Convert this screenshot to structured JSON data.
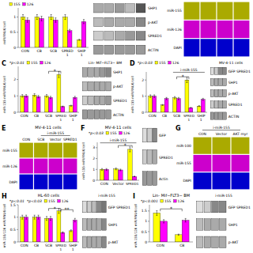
{
  "chart_data": [
    {
      "type": "bar",
      "categories": [
        "CON",
        "CB",
        "SCB",
        "SPRED\n1",
        "SHIP\n1"
      ],
      "y_label": "miR/RNU6/cell",
      "ylim": [
        0,
        1.3
      ],
      "yticks": [
        0,
        0.5,
        1
      ],
      "series": [
        {
          "name": "155",
          "color": "#ffff00",
          "values": [
            1.0,
            1.0,
            1.0,
            1.0,
            0.25
          ],
          "errors": [
            0.08,
            0.08,
            0.08,
            0.08,
            0.02
          ]
        },
        {
          "name": "126",
          "color": "#ff00ff",
          "values": [
            0.9,
            0.95,
            0.9,
            0.55,
            0.85
          ],
          "errors": [
            0.072,
            0.076,
            0.072,
            0.044,
            0.068
          ]
        }
      ]
    },
    {
      "type": "blot",
      "categories": [
        "SHP1",
        "p-AKT",
        "SPRED1",
        "ACTIN"
      ],
      "x": [
        null,
        null,
        null,
        null,
        null
      ],
      "colors": [
        [
          "#aaaaaa",
          "#aaaaaa",
          "#999999",
          "#bbbbbb",
          "#555555"
        ],
        [
          "#bbbbbb",
          "#aaaaaa",
          "#aaaaaa",
          "#aaaaaa",
          "#888888"
        ],
        [
          "#cccccc",
          "#bbbbbb",
          "#aaaaaa",
          "#999999",
          "#888888"
        ],
        [
          "#999999",
          "#999999",
          "#999999",
          "#999999",
          "#999999"
        ]
      ]
    },
    {
      "type": "image_grid",
      "categories": [
        "miR-155",
        "miR-126",
        "DAPI"
      ],
      "x": [
        null,
        null,
        null,
        null
      ],
      "colors": [
        "#aaaa00",
        "#cc00cc",
        "#0000cc"
      ]
    },
    {
      "type": "bar",
      "categories": [
        "CON",
        "CB",
        "SCB",
        "SPRED\n1",
        "SHIP\n1"
      ],
      "y_label": "miR-155 miR/RNU6/cell",
      "ylim": [
        0,
        2.8
      ],
      "yticks": [
        0,
        1,
        2
      ],
      "series": [
        {
          "name": "155",
          "color": "#ffff00",
          "values": [
            1.0,
            1.05,
            1.0,
            2.3,
            0.4
          ],
          "errors": [
            0.08,
            0.084,
            0.08,
            0.184,
            0.032
          ]
        },
        {
          "name": "126",
          "color": "#ff00ff",
          "values": [
            1.0,
            0.95,
            0.9,
            0.35,
            0.9
          ],
          "errors": [
            0.08,
            0.076,
            0.072,
            0.028,
            0.072
          ]
        }
      ],
      "annotations": [
        {
          "text": "C",
          "kind": "panel"
        },
        {
          "text": "*p<0.01",
          "kind": "note"
        },
        {
          "text": "*",
          "kind": "bracket",
          "between": [
            2,
            3
          ],
          "y": 2.5
        }
      ]
    },
    {
      "type": "blot",
      "title": "Lin- Mif−FLT3− BM",
      "categories": [
        "SHP1",
        "p-AKT",
        "SPRED1",
        "ACTIN"
      ],
      "x": [
        null,
        null,
        null,
        null,
        null
      ],
      "colors": [
        [
          "#aaaaaa",
          "#aaaaaa",
          "#aaaaaa",
          "#999999",
          "#888888"
        ],
        [
          "#bbbbbb",
          "#aaaaaa",
          "#aaaaaa",
          "#aaaaaa",
          "#aaaaaa"
        ],
        [
          "#cccccc",
          "#bbbbbb",
          "#aaaaaa",
          "#aaaaaa",
          "#999999"
        ],
        [
          "#999999",
          "#999999",
          "#999999",
          "#999999",
          "#999999"
        ]
      ]
    },
    {
      "type": "bar",
      "categories": [
        "CON",
        "CB",
        "SCB",
        "SPRED\n1",
        "SHIP\n1"
      ],
      "y_label": "miR-155 miR/RNU6/cell",
      "ylim": [
        0,
        2.5
      ],
      "yticks": [
        0,
        1,
        2
      ],
      "series": [
        {
          "name": "155",
          "color": "#ffff00",
          "values": [
            1.0,
            0.45,
            0.9,
            2.0,
            0.38
          ],
          "errors": [
            0.08,
            0.036,
            0.072,
            0.16,
            0.0304
          ]
        },
        {
          "name": "126",
          "color": "#ff00ff",
          "values": [
            1.0,
            0.85,
            0.85,
            0.28,
            0.8
          ],
          "errors": [
            0.08,
            0.068,
            0.068,
            0.0224,
            0.064
          ]
        }
      ],
      "annotations": [
        {
          "text": "D",
          "kind": "panel"
        },
        {
          "text": "*p<0.03",
          "kind": "note"
        },
        {
          "text": "*",
          "kind": "bracket",
          "between": [
            2,
            3
          ],
          "y": 2.2
        },
        {
          "text": "i-miR-155",
          "kind": "span",
          "between": [
            2,
            4
          ],
          "y": 2.48
        }
      ]
    },
    {
      "type": "blot",
      "title": "MV-4-11 cells",
      "categories": [
        "GFP SPRED1",
        "SHP1",
        "p-AKT",
        "SPRED1",
        "ACTIN"
      ],
      "x": [
        null,
        null,
        null,
        null
      ],
      "colors": [
        [
          "#dddddd",
          "#cccccc",
          "#888888",
          "#888888"
        ],
        [
          "#bbbbbb",
          "#aaaaaa",
          "#aaaaaa",
          "#aaaaaa"
        ],
        [
          "#bbbbbb",
          "#aaaaaa",
          "#aaaaaa",
          "#aaaaaa"
        ],
        [
          "#cccccc",
          "#bbbbbb",
          "#aaaaaa",
          "#aaaaaa"
        ],
        [
          "#999999",
          "#999999",
          "#999999",
          "#999999"
        ]
      ]
    },
    {
      "type": "image_grid",
      "title": "MV-4-11 cells",
      "categories": [
        "miR-155",
        "miR-126",
        "DAPI"
      ],
      "x": [
        "CON",
        "SCB",
        "Vector",
        "SPRED1"
      ],
      "colors": [
        "#aaaa00",
        "#cc00cc",
        "#0000cc"
      ],
      "annotations": [
        {
          "text": "E",
          "kind": "panel"
        },
        {
          "text": "i-miR-155",
          "kind": "span",
          "between": [
            1,
            3
          ]
        }
      ]
    },
    {
      "type": "bar",
      "title": "MV-4-11 cells",
      "categories": [
        "CON",
        "Vector",
        "SPRED1"
      ],
      "y_label": "miR-155 miR/RNU6/cell",
      "ylim": [
        0,
        3.5
      ],
      "yticks": [
        0,
        1,
        2,
        3
      ],
      "series": [
        {
          "name": "155",
          "color": "#ffff00",
          "values": [
            1.0,
            1.05,
            2.85
          ],
          "errors": [
            0.08,
            0.084,
            0.228
          ]
        },
        {
          "name": "126",
          "color": "#ff00ff",
          "values": [
            1.0,
            0.95,
            0.35
          ],
          "errors": [
            0.08,
            0.076,
            0.028
          ]
        }
      ],
      "annotations": [
        {
          "text": "F",
          "kind": "panel"
        },
        {
          "text": "*p<0.03",
          "kind": "note"
        },
        {
          "text": "*",
          "kind": "bracket",
          "between": [
            1,
            2
          ],
          "y": 3.2
        },
        {
          "text": "i-miR-155",
          "kind": "span",
          "between": [
            0,
            2
          ],
          "y": 3.45
        }
      ]
    },
    {
      "type": "blot",
      "categories": [
        "GFP",
        "SPRED1",
        "Actin"
      ],
      "x": [
        null,
        null,
        null
      ],
      "colors": [
        [
          "#dddddd",
          "#cccccc",
          "#888888"
        ],
        [
          "#cccccc",
          "#bbbbbb",
          "#aaaaaa"
        ],
        [
          "#999999",
          "#999999",
          "#999999"
        ]
      ]
    },
    {
      "type": "image_grid",
      "categories": [
        "miR-100",
        "miR-155",
        "DAPI"
      ],
      "x": [
        "CON",
        "Vector",
        "AKT myr"
      ],
      "colors": [
        "#aaaa00",
        "#cc00cc",
        "#0000cc"
      ],
      "annotations": [
        {
          "text": "G",
          "kind": "panel"
        },
        {
          "text": "i-miR-155",
          "kind": "span",
          "between": [
            0,
            2
          ]
        }
      ]
    },
    {
      "type": "bar",
      "title": "HL-60 cells",
      "categories": [
        "CON",
        "CB",
        "SCB",
        "SPRED\n1",
        "SHIP\n1"
      ],
      "y_label": "miR-155/126 miR/RNU6/cell",
      "ylim": [
        0,
        1.5
      ],
      "yticks": [
        0,
        0.5,
        1,
        1.5
      ],
      "series": [
        {
          "name": "155",
          "color": "#ffff00",
          "values": [
            1.0,
            1.0,
            0.95,
            1.25,
            0.45
          ],
          "errors": [
            0.08,
            0.08,
            0.076,
            0.1,
            0.036
          ]
        },
        {
          "name": "126",
          "color": "#ff00ff",
          "values": [
            1.0,
            1.0,
            0.95,
            0.38,
            0.88
          ],
          "errors": [
            0.08,
            0.08,
            0.076,
            0.0304,
            0.0704
          ]
        }
      ],
      "annotations": [
        {
          "text": "H",
          "kind": "panel"
        },
        {
          "text": "*p<0.01",
          "kind": "note"
        },
        {
          "text": "*p<0.03",
          "kind": "note"
        },
        {
          "text": "*",
          "kind": "bracket",
          "between": [
            2,
            3
          ],
          "y": 1.35
        },
        {
          "text": "**",
          "kind": "bracket",
          "between": [
            3,
            4
          ],
          "y": 1.3
        }
      ]
    },
    {
      "type": "blot",
      "title": "i-miR-155",
      "categories": [
        "GFP SPRED1",
        "SHP1",
        "p-AKT"
      ],
      "x": [
        null,
        null,
        null,
        null,
        null
      ],
      "colors": [
        [
          "#dddddd",
          "#cccccc",
          "#bbbbbb",
          "#888888",
          "#777777"
        ],
        [
          "#bbbbbb",
          "#aaaaaa",
          "#aaaaaa",
          "#aaaaaa",
          "#888888"
        ],
        [
          "#bbbbbb",
          "#aaaaaa",
          "#aaaaaa",
          "#aaaaaa",
          "#888888"
        ]
      ]
    },
    {
      "type": "bar",
      "title": "Lin- Mif−FLT3− BM",
      "categories": [
        "CON",
        "CB"
      ],
      "y_label": "miR-155/126 miR/RNU6/cell",
      "ylim": [
        0,
        1.8
      ],
      "yticks": [
        0,
        0.5,
        1,
        1.5
      ],
      "series": [
        {
          "name": "155",
          "color": "#ffff00",
          "values": [
            1.4,
            0.35
          ],
          "errors": [
            0.112,
            0.028
          ]
        },
        {
          "name": "126",
          "color": "#ff00ff",
          "values": [
            1.0,
            1.05
          ],
          "errors": [
            0.08,
            0.084
          ]
        }
      ],
      "annotations": [
        {
          "text": "I",
          "kind": "panel"
        },
        {
          "text": "*p<0.001",
          "kind": "note"
        },
        {
          "text": "*",
          "kind": "bracket",
          "between": [
            0,
            1
          ],
          "y": 1.6
        }
      ]
    },
    {
      "type": "blot",
      "title": "i-miR-155",
      "categories": [
        "GFP SPRED1",
        "SHP1",
        "p-AKT"
      ],
      "x": [
        null,
        null,
        null,
        null
      ],
      "colors": [
        [
          "#dddddd",
          "#cccccc",
          "#888888",
          "#888888"
        ],
        [
          "#bbbbbb",
          "#aaaaaa",
          "#aaaaaa",
          "#aaaaaa"
        ],
        [
          "#bbbbbb",
          "#aaaaaa",
          "#aaaaaa",
          "#aaaaaa"
        ]
      ]
    }
  ]
}
